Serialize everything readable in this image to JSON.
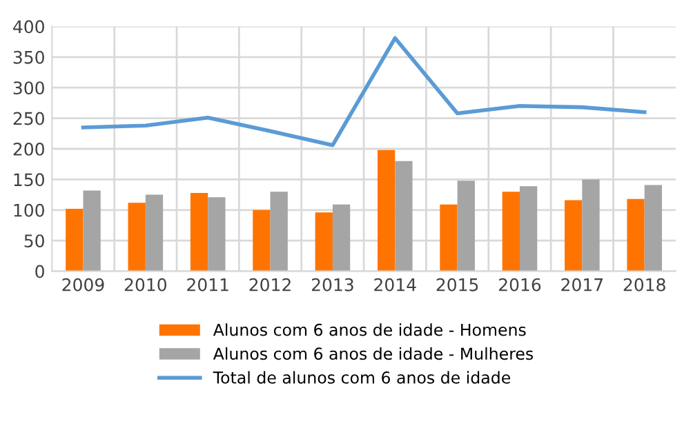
{
  "chart_data": {
    "type": "bar",
    "categories": [
      "2009",
      "2010",
      "2011",
      "2012",
      "2013",
      "2014",
      "2015",
      "2016",
      "2017",
      "2018"
    ],
    "series": [
      {
        "name": "Alunos com 6 anos de idade - Homens",
        "color": "#ff7400",
        "values": [
          102,
          112,
          128,
          100,
          96,
          198,
          109,
          130,
          116,
          118
        ]
      },
      {
        "name": "Alunos com 6 anos de idade - Mulheres",
        "color": "#a5a5a5",
        "values": [
          132,
          125,
          121,
          130,
          109,
          180,
          148,
          139,
          150,
          141
        ]
      },
      {
        "name": "Total de alunos com 6 anos de idade",
        "type": "line",
        "color": "#5b9bd5",
        "values": [
          235,
          238,
          251,
          229,
          206,
          381,
          258,
          270,
          268,
          260
        ]
      }
    ],
    "ylim": [
      0,
      400
    ],
    "yticks": [
      0,
      50,
      100,
      150,
      200,
      250,
      300,
      350,
      400
    ],
    "grid": true,
    "legend": "bottom"
  }
}
